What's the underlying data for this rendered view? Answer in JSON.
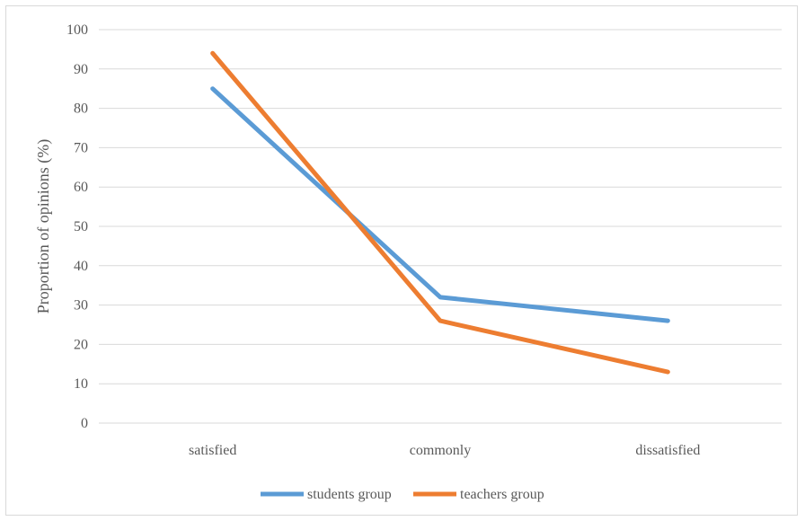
{
  "chart_data": {
    "type": "line",
    "title": "",
    "xlabel": "",
    "ylabel": "Proportion of opinions (%)",
    "categories": [
      "satisfied",
      "commonly",
      "dissatisfied"
    ],
    "ylim": [
      0,
      100
    ],
    "yticks": [
      0,
      10,
      20,
      30,
      40,
      50,
      60,
      70,
      80,
      90,
      100
    ],
    "grid": "horizontal",
    "legend_position": "bottom",
    "series": [
      {
        "name": "students group",
        "values": [
          85,
          32,
          26
        ],
        "color": "#5b9bd5"
      },
      {
        "name": "teachers group",
        "values": [
          94,
          26,
          13
        ],
        "color": "#ed7d31"
      }
    ]
  }
}
